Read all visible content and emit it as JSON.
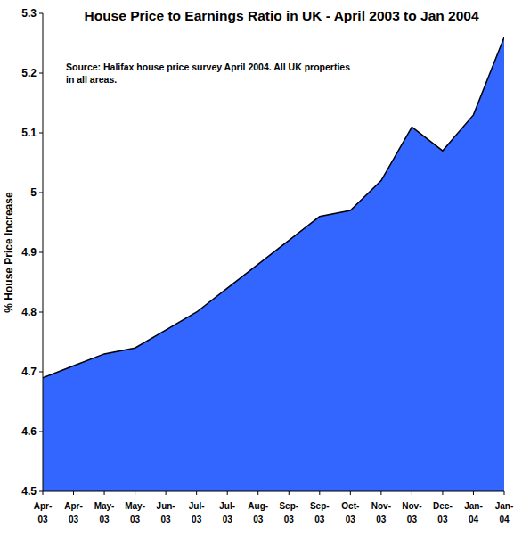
{
  "chart_data": {
    "type": "area",
    "title": "House Price to Earnings Ratio in UK - April 2003 to Jan 2004",
    "annotation": "Source: Halifax house price survey April 2004. All UK properties in all areas.",
    "y_label": "% House Price Increase",
    "categories": [
      "Apr-03",
      "Apr-03",
      "May-03",
      "May-03",
      "Jun-03",
      "Jul-03",
      "Jul-03",
      "Aug-03",
      "Sep-03",
      "Sep-03",
      "Oct-03",
      "Nov-03",
      "Nov-03",
      "Dec-03",
      "Jan-04",
      "Jan-04"
    ],
    "values": [
      4.69,
      4.71,
      4.73,
      4.74,
      4.77,
      4.8,
      4.84,
      4.88,
      4.92,
      4.96,
      4.97,
      5.02,
      5.11,
      5.07,
      5.13,
      5.26
    ],
    "color": "#3366ff",
    "ylim": [
      4.5,
      5.3
    ],
    "yticks": [
      4.5,
      4.6,
      4.7,
      4.8,
      4.9,
      5,
      5.1,
      5.2,
      5.3
    ],
    "grid": false
  }
}
